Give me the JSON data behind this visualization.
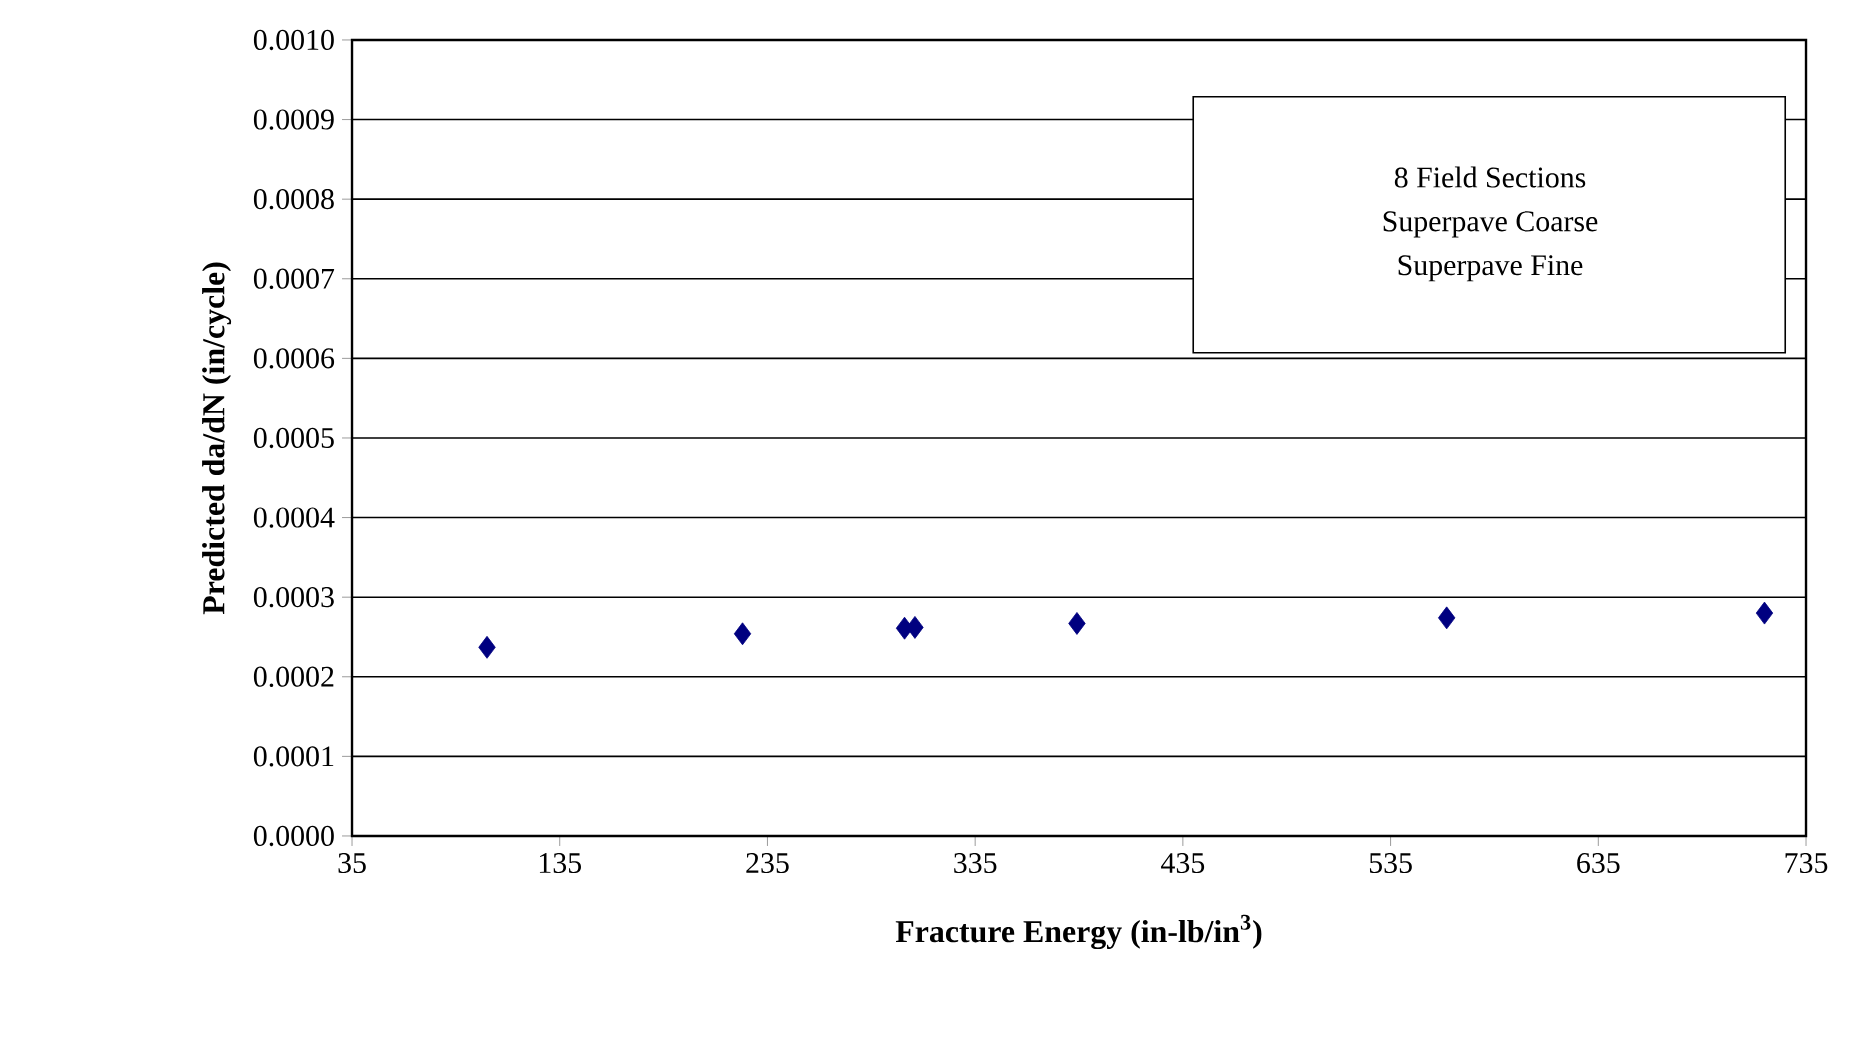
{
  "chart_data": {
    "type": "scatter",
    "xlabel": "Fracture Energy (in-lb/in$^{3}$)",
    "ylabel": "Predicted da/dN (in/cycle)",
    "x": [
      100,
      223,
      301,
      306,
      384,
      562,
      715
    ],
    "values": [
      0.000237,
      0.000254,
      0.000261,
      0.000262,
      0.000267,
      0.000274,
      0.00028
    ],
    "color": "#000080",
    "marker": "diamond",
    "grid": "y",
    "xlim": [
      35,
      735
    ],
    "xticks": [
      35,
      135,
      235,
      335,
      435,
      535,
      635,
      735
    ],
    "ylim": [
      0,
      0.001
    ],
    "yticks": [
      {
        "value": 0,
        "label": "0.0000"
      },
      {
        "value": 0.0001,
        "label": "0.0001"
      },
      {
        "value": 0.0002,
        "label": "0.0002"
      },
      {
        "value": 0.0003,
        "label": "0.0003"
      },
      {
        "value": 0.0004,
        "label": "0.0004"
      },
      {
        "value": 0.0005,
        "label": "0.0005"
      },
      {
        "value": 0.0006,
        "label": "0.0006"
      },
      {
        "value": 0.0007,
        "label": "0.0007"
      },
      {
        "value": 0.0008,
        "label": "0.0008"
      },
      {
        "value": 0.0009,
        "label": "0.0009"
      },
      {
        "value": 0.001,
        "label": "0.0010"
      }
    ],
    "annotations": [
      "8 Field Sections",
      "Superpave    Coarse",
      "Superpave    Fine"
    ]
  }
}
